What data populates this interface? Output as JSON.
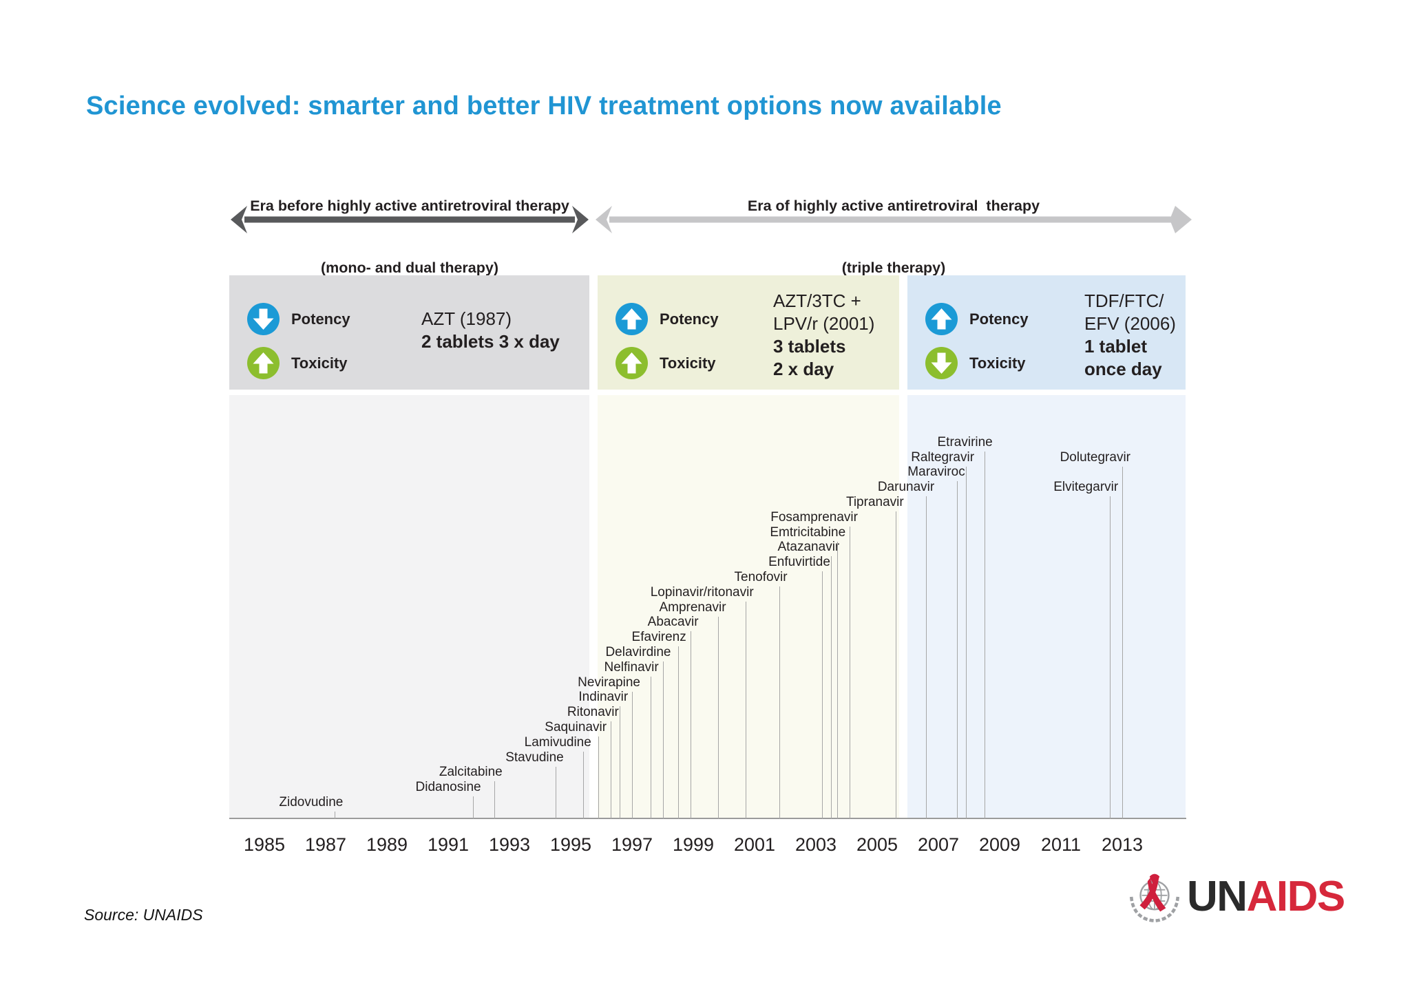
{
  "title": {
    "text": "Science evolved: smarter and better HIV treatment options now available",
    "color": "#2095d3"
  },
  "eras": [
    {
      "line1": "Era before highly active antiretroviral therapy",
      "line2": "(mono- and dual therapy)",
      "arrow_color": "#58595b"
    },
    {
      "line1": "Era of highly active antiretroviral  therapy",
      "line2": "(triple therapy)",
      "arrow_color": "#c6c6c8"
    }
  ],
  "icon_colors": {
    "potency_circle": "#1b9ad6",
    "toxicity_circle": "#8cbe2e"
  },
  "panels": [
    {
      "bg": "#dcdcde",
      "section_bg": "#f3f3f4",
      "potency_label": "Potency",
      "potency_dir": "down",
      "toxicity_label": "Toxicity",
      "toxicity_dir": "up",
      "name_lines": [
        "AZT (1987)"
      ],
      "dose_lines": [
        "2 tablets 3 x day"
      ]
    },
    {
      "bg": "#eef0da",
      "section_bg": "#fafaf0",
      "potency_label": "Potency",
      "potency_dir": "up",
      "toxicity_label": "Toxicity",
      "toxicity_dir": "up",
      "name_lines": [
        "AZT/3TC +",
        "LPV/r (2001)"
      ],
      "dose_lines": [
        "3 tablets",
        "2 x day"
      ]
    },
    {
      "bg": "#d8e7f5",
      "section_bg": "#edf3fb",
      "potency_label": "Potency",
      "potency_dir": "up",
      "toxicity_label": "Toxicity",
      "toxicity_dir": "down",
      "name_lines": [
        "TDF/FTC/",
        "EFV (2006)"
      ],
      "dose_lines": [
        "1 tablet",
        "once day"
      ]
    }
  ],
  "chart_data": {
    "type": "timeline",
    "title": "HIV antiretroviral drug approvals by year",
    "x_ticks": [
      1985,
      1987,
      1989,
      1991,
      1993,
      1995,
      1997,
      1999,
      2001,
      2003,
      2005,
      2007,
      2009,
      2011,
      2013
    ],
    "x_range": [
      1984,
      2015
    ],
    "drugs": [
      {
        "name": "Zidovudine",
        "year": 1987.3,
        "level": 0
      },
      {
        "name": "Didanosine",
        "year": 1991.8,
        "level": 1
      },
      {
        "name": "Zalcitabine",
        "year": 1992.5,
        "level": 2
      },
      {
        "name": "Stavudine",
        "year": 1994.5,
        "level": 3
      },
      {
        "name": "Lamivudine",
        "year": 1995.4,
        "level": 4
      },
      {
        "name": "Saquinavir",
        "year": 1995.9,
        "level": 5
      },
      {
        "name": "Ritonavir",
        "year": 1996.3,
        "level": 6
      },
      {
        "name": "Indinavir",
        "year": 1996.6,
        "level": 7
      },
      {
        "name": "Nevirapine",
        "year": 1997.0,
        "level": 8
      },
      {
        "name": "Nelfinavir",
        "year": 1997.6,
        "level": 9
      },
      {
        "name": "Delavirdine",
        "year": 1998.0,
        "level": 10
      },
      {
        "name": "Efavirenz",
        "year": 1998.5,
        "level": 11
      },
      {
        "name": "Abacavir",
        "year": 1998.9,
        "level": 12
      },
      {
        "name": "Amprenavir",
        "year": 1999.8,
        "level": 13
      },
      {
        "name": "Lopinavir/ritonavir",
        "year": 2000.7,
        "level": 14
      },
      {
        "name": "Tenofovir",
        "year": 2001.8,
        "level": 15
      },
      {
        "name": "Enfuvirtide",
        "year": 2003.2,
        "level": 16
      },
      {
        "name": "Atazanavir",
        "year": 2003.5,
        "level": 17
      },
      {
        "name": "Emtricitabine",
        "year": 2003.7,
        "level": 18
      },
      {
        "name": "Fosamprenavir",
        "year": 2004.1,
        "level": 19
      },
      {
        "name": "Tipranavir",
        "year": 2005.6,
        "level": 20
      },
      {
        "name": "Darunavir",
        "year": 2006.6,
        "level": 21
      },
      {
        "name": "Maraviroc",
        "year": 2007.6,
        "level": 22
      },
      {
        "name": "Raltegravir",
        "year": 2007.9,
        "level": 23
      },
      {
        "name": "Etravirine",
        "year": 2008.5,
        "level": 24
      },
      {
        "name": "Elvitegarvir",
        "year": 2012.6,
        "level": 21
      },
      {
        "name": "Dolutegravir",
        "year": 2013.0,
        "level": 23
      }
    ]
  },
  "source": "Source: UNAIDS",
  "logo": {
    "un": "UN",
    "aids": "AIDS",
    "un_color": "#2b2b2b",
    "aids_color": "#d6283b"
  }
}
